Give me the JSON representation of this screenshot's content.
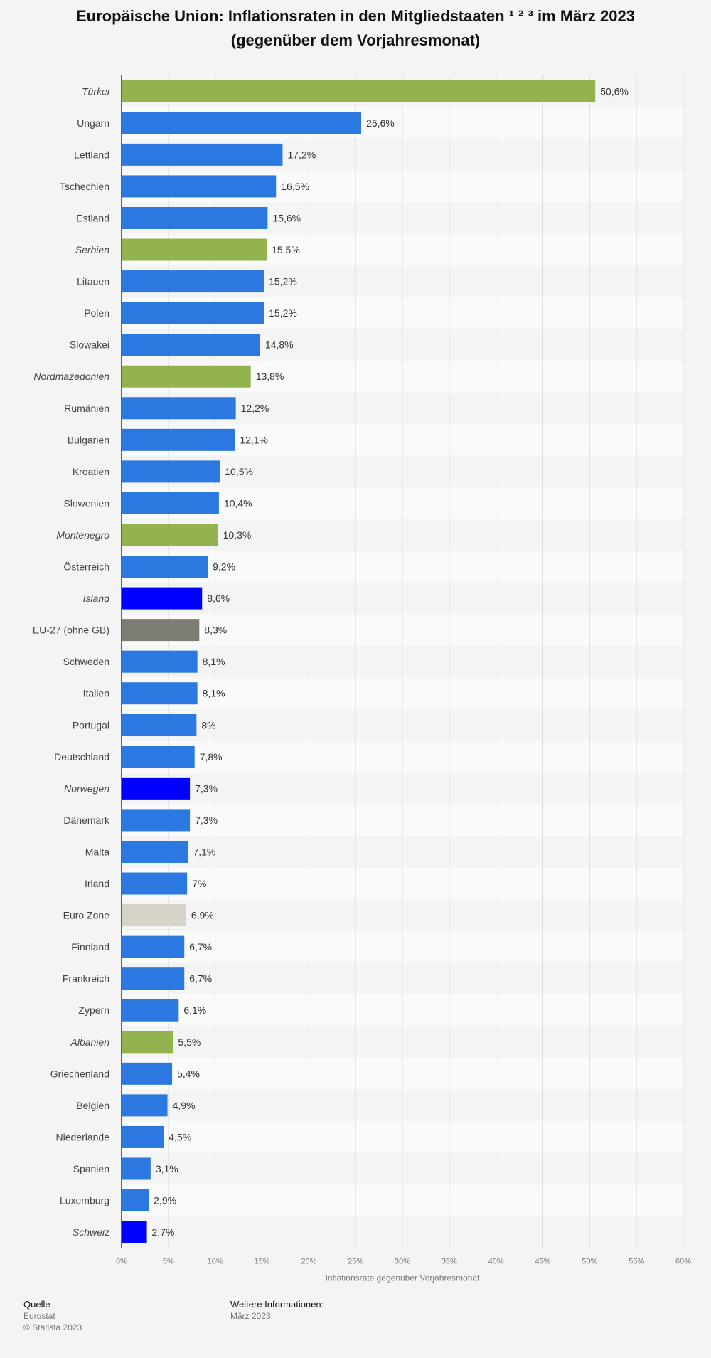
{
  "title": {
    "line1": "Europäische Union: Inflationsraten in den Mitgliedstaaten ¹ ² ³  im März 2023",
    "line2": "(gegenüber dem Vorjahresmonat)"
  },
  "colors": {
    "eu_member": "#2a78e0",
    "candidate": "#93b34e",
    "efta": "#0000ff",
    "eu27": "#7c7c74",
    "eurozone": "#d6d4c8",
    "grid": "#dedede",
    "stripe": "#ececec"
  },
  "chart_data": {
    "type": "bar",
    "orientation": "horizontal",
    "xlabel": "Inflationsrate gegenüber Vorjahresmonat",
    "xlim": [
      0,
      60
    ],
    "xticks": [
      "0%",
      "5%",
      "10%",
      "15%",
      "20%",
      "25%",
      "30%",
      "35%",
      "40%",
      "45%",
      "50%",
      "55%",
      "60%"
    ],
    "grid": true,
    "categories": [
      "Türkei",
      "Ungarn",
      "Lettland",
      "Tschechien",
      "Estland",
      "Serbien",
      "Litauen",
      "Polen",
      "Slowakei",
      "Nordmazedonien",
      "Rumänien",
      "Bulgarien",
      "Kroatien",
      "Slowenien",
      "Montenegro",
      "Österreich",
      "Island",
      "EU-27 (ohne GB)",
      "Schweden",
      "Italien",
      "Portugal",
      "Deutschland",
      "Norwegen",
      "Dänemark",
      "Malta",
      "Irland",
      "Euro Zone",
      "Finnland",
      "Frankreich",
      "Zypern",
      "Albanien",
      "Griechenland",
      "Belgien",
      "Niederlande",
      "Spanien",
      "Luxemburg",
      "Schweiz"
    ],
    "values": [
      50.6,
      25.6,
      17.2,
      16.5,
      15.6,
      15.5,
      15.2,
      15.2,
      14.8,
      13.8,
      12.2,
      12.1,
      10.5,
      10.4,
      10.3,
      9.2,
      8.6,
      8.3,
      8.1,
      8.1,
      8.0,
      7.8,
      7.3,
      7.3,
      7.1,
      7.0,
      6.9,
      6.7,
      6.7,
      6.1,
      5.5,
      5.4,
      4.9,
      4.5,
      3.1,
      2.9,
      2.7
    ],
    "value_labels": [
      "50,6%",
      "25,6%",
      "17,2%",
      "16,5%",
      "15,6%",
      "15,5%",
      "15,2%",
      "15,2%",
      "14,8%",
      "13,8%",
      "12,2%",
      "12,1%",
      "10,5%",
      "10,4%",
      "10,3%",
      "9,2%",
      "8,6%",
      "8,3%",
      "8,1%",
      "8,1%",
      "8%",
      "7,8%",
      "7,3%",
      "7,3%",
      "7,1%",
      "7%",
      "6,9%",
      "6,7%",
      "6,7%",
      "6,1%",
      "5,5%",
      "5,4%",
      "4,9%",
      "4,5%",
      "3,1%",
      "2,9%",
      "2,7%"
    ],
    "bar_groups": [
      "candidate",
      "eu_member",
      "eu_member",
      "eu_member",
      "eu_member",
      "candidate",
      "eu_member",
      "eu_member",
      "eu_member",
      "candidate",
      "eu_member",
      "eu_member",
      "eu_member",
      "eu_member",
      "candidate",
      "eu_member",
      "efta",
      "eu27",
      "eu_member",
      "eu_member",
      "eu_member",
      "eu_member",
      "efta",
      "eu_member",
      "eu_member",
      "eu_member",
      "eurozone",
      "eu_member",
      "eu_member",
      "eu_member",
      "candidate",
      "eu_member",
      "eu_member",
      "eu_member",
      "eu_member",
      "eu_member",
      "efta"
    ],
    "italic_labels": [
      true,
      false,
      false,
      false,
      false,
      true,
      false,
      false,
      false,
      true,
      false,
      false,
      false,
      false,
      true,
      false,
      true,
      false,
      false,
      false,
      false,
      false,
      true,
      false,
      false,
      false,
      false,
      false,
      false,
      false,
      true,
      false,
      false,
      false,
      false,
      false,
      true
    ]
  },
  "footer": {
    "source_heading": "Quelle",
    "source_name": "Eurostat",
    "copyright": "© Statista 2023",
    "info_heading": "Weitere Informationen:",
    "info_text": "März 2023"
  }
}
